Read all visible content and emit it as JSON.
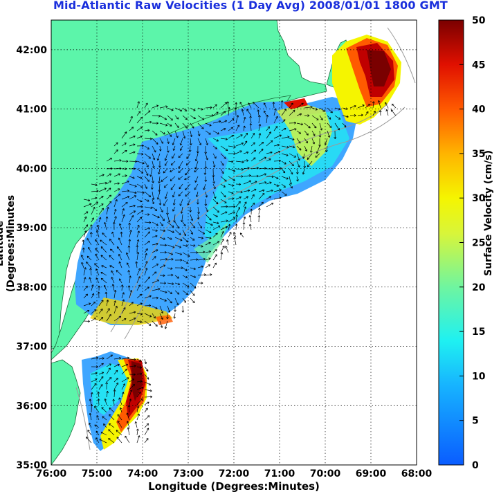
{
  "title": "Mid-Atlantic Raw Velocities (1 Day Avg) 2008/01/01 1800 GMT",
  "axes": {
    "xlabel": "Longitude (Degrees:Minutes)",
    "ylabel": "Latitude (Degrees:Minutes",
    "x_ticks": [
      "76:00",
      "75:00",
      "74:00",
      "73:00",
      "72:00",
      "71:00",
      "70:00",
      "69:00",
      "68:00"
    ],
    "y_ticks": [
      "35:00",
      "36:00",
      "37:00",
      "38:00",
      "39:00",
      "40:00",
      "41:00",
      "42:00"
    ],
    "xlim": [
      -76,
      -68
    ],
    "ylim": [
      35,
      42.5
    ],
    "grid": true
  },
  "colorbar": {
    "label": "Surface Velocity (cm/s)",
    "ticks": [
      "0",
      "5",
      "10",
      "15",
      "20",
      "25",
      "30",
      "35",
      "40",
      "45",
      "50"
    ],
    "range": [
      0,
      50
    ],
    "colormap": "jet"
  },
  "colors": {
    "land": "#5cf5aa",
    "title": "#1a2fdc",
    "bathymetry": "#9a9a9a",
    "ocean": "#ffffff"
  }
}
